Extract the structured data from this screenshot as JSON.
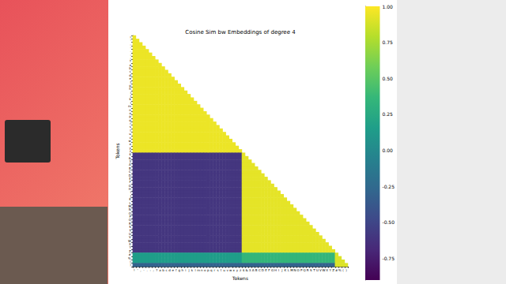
{
  "chart_data": {
    "type": "heatmap",
    "title": "Cosine Sim bw Embeddings of degree 4",
    "x_label": "Tokens",
    "y_label": "Tokens",
    "categories": [
      "!",
      "'",
      ",",
      "-",
      ".",
      ":",
      ";",
      "?",
      "a",
      "b",
      "c",
      "d",
      "e",
      "f",
      "g",
      "h",
      "i",
      "j",
      "k",
      "l",
      "m",
      "n",
      "o",
      "p",
      "q",
      "r",
      "s",
      "t",
      "u",
      "v",
      "w",
      "x",
      "y",
      "z",
      "$",
      "&",
      "3",
      "A",
      "B",
      "C",
      "D",
      "E",
      "F",
      "G",
      "H",
      "I",
      "J",
      "K",
      "L",
      "M",
      "N",
      "O",
      "P",
      "Q",
      "R",
      "S",
      "T",
      "U",
      "V",
      "W",
      "X",
      "Y",
      "Z",
      "#",
      "%",
      "(",
      ")"
    ],
    "cells": [
      {
        "rows": [
          "!",
          "z"
        ],
        "cols": [
          "!",
          "z"
        ],
        "value": 0.95
      },
      {
        "rows": [
          "$",
          "Z"
        ],
        "cols": [
          "!",
          "z"
        ],
        "value": -0.6
      },
      {
        "rows": [
          "$",
          "Z"
        ],
        "cols": [
          "$",
          "Z"
        ],
        "value": 0.93
      },
      {
        "rows": [
          "#",
          ")"
        ],
        "cols": [
          "!",
          "z"
        ],
        "value": 0.15
      },
      {
        "rows": [
          "#",
          ")"
        ],
        "cols": [
          "$",
          "Z"
        ],
        "value": 0.35
      },
      {
        "rows": [
          "#",
          ")"
        ],
        "cols": [
          "#",
          ")"
        ],
        "value": 0.9
      },
      {
        "rows": [
          ")",
          ")"
        ],
        "cols": [
          "!",
          "Z"
        ],
        "value": -0.3
      }
    ],
    "colorbar_range": [
      -0.9,
      1.0
    ],
    "colorbar_ticks": [
      -0.75,
      {
        "value": -0.5,
        "label": "-0.50"
      },
      -0.25,
      {
        "value": 0,
        "label": "0.00"
      },
      0.25,
      {
        "value": 0.5,
        "label": "0.50"
      },
      0.75,
      {
        "value": 1,
        "label": "1.00"
      }
    ]
  }
}
